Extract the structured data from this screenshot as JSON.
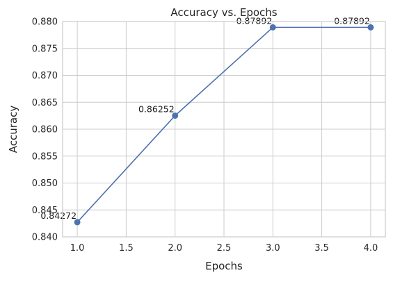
{
  "chart_data": {
    "type": "line",
    "title": "Accuracy vs. Epochs",
    "xlabel": "Epochs",
    "ylabel": "Accuracy",
    "x": [
      1.0,
      2.0,
      3.0,
      4.0
    ],
    "series": [
      {
        "values": [
          0.84272,
          0.86252,
          0.87892,
          0.87892
        ],
        "point_labels": [
          "0.84272",
          "0.86252",
          "0.87892",
          "0.87892"
        ],
        "color": "#4c72b0",
        "marker": "circle"
      }
    ],
    "xlim": [
      0.85,
      4.15
    ],
    "ylim": [
      0.84,
      0.88
    ],
    "xticks": [
      1.0,
      1.5,
      2.0,
      2.5,
      3.0,
      3.5,
      4.0
    ],
    "xtick_labels": [
      "1.0",
      "1.5",
      "2.0",
      "2.5",
      "3.0",
      "3.5",
      "4.0"
    ],
    "yticks": [
      0.84,
      0.845,
      0.85,
      0.855,
      0.86,
      0.865,
      0.87,
      0.875,
      0.88
    ],
    "ytick_labels": [
      "0.840",
      "0.845",
      "0.850",
      "0.855",
      "0.860",
      "0.865",
      "0.870",
      "0.875",
      "0.880"
    ],
    "grid": true,
    "colors": {
      "grid": "#cccccc",
      "axes_edge": "#cccccc",
      "text": "#262626",
      "background": "#ffffff"
    }
  }
}
